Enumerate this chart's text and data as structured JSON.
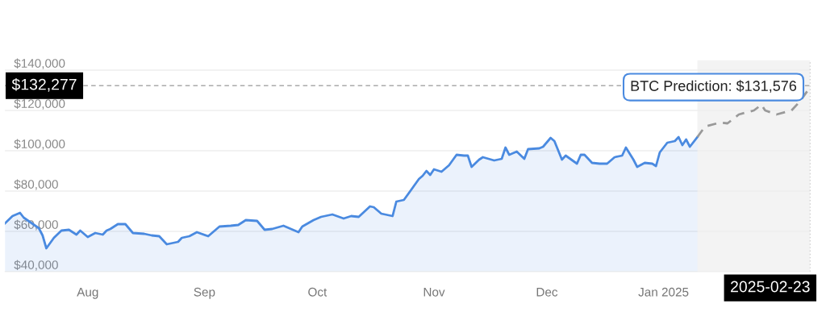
{
  "chart_data": {
    "type": "area",
    "series": [
      {
        "color": "#4a8ae0",
        "line_style": "solid",
        "x": [
          "2024-07-24",
          "2024-07-26",
          "2024-07-28",
          "2024-07-29",
          "2024-08-02",
          "2024-08-03",
          "2024-08-04",
          "2024-08-06",
          "2024-08-08",
          "2024-08-10",
          "2024-08-12",
          "2024-08-13",
          "2024-08-15",
          "2024-08-17",
          "2024-08-19",
          "2024-08-20",
          "2024-08-21",
          "2024-08-23",
          "2024-08-25",
          "2024-08-27",
          "2024-08-30",
          "2024-09-01",
          "2024-09-03",
          "2024-09-05",
          "2024-09-08",
          "2024-09-09",
          "2024-09-11",
          "2024-09-13",
          "2024-09-16",
          "2024-09-19",
          "2024-09-22",
          "2024-09-24",
          "2024-09-26",
          "2024-09-29",
          "2024-10-01",
          "2024-10-03",
          "2024-10-06",
          "2024-10-10",
          "2024-10-11",
          "2024-10-14",
          "2024-10-16",
          "2024-10-19",
          "2024-10-22",
          "2024-10-24",
          "2024-10-26",
          "2024-10-29",
          "2024-10-30",
          "2024-11-01",
          "2024-11-04",
          "2024-11-05",
          "2024-11-07",
          "2024-11-11",
          "2024-11-12",
          "2024-11-13",
          "2024-11-14",
          "2024-11-15",
          "2024-11-17",
          "2024-11-19",
          "2024-11-21",
          "2024-11-23",
          "2024-11-24",
          "2024-11-25",
          "2024-11-27",
          "2024-11-28",
          "2024-12-01",
          "2024-12-03",
          "2024-12-04",
          "2024-12-05",
          "2024-12-07",
          "2024-12-09",
          "2024-12-10",
          "2024-12-13",
          "2024-12-14",
          "2024-12-16",
          "2024-12-17",
          "2024-12-19",
          "2024-12-20",
          "2024-12-23",
          "2024-12-24",
          "2024-12-25",
          "2024-12-27",
          "2024-12-29",
          "2024-12-31",
          "2025-01-02",
          "2025-01-04",
          "2025-01-05",
          "2025-01-07",
          "2025-01-08",
          "2025-01-10",
          "2025-01-12",
          "2025-01-13",
          "2025-01-14",
          "2025-01-16",
          "2025-01-18",
          "2025-01-19",
          "2025-01-20",
          "2025-01-21",
          "2025-01-22",
          "2025-01-24"
        ],
        "values": [
          64000,
          67600,
          69200,
          66800,
          61600,
          58000,
          51600,
          56800,
          60400,
          60800,
          58400,
          60400,
          57200,
          59200,
          58400,
          60400,
          61200,
          63600,
          63600,
          59200,
          58800,
          58000,
          57600,
          53600,
          54800,
          56800,
          57600,
          59600,
          57600,
          62400,
          62800,
          63200,
          65600,
          65200,
          60800,
          61200,
          62800,
          59600,
          62400,
          65600,
          67200,
          68400,
          66400,
          67600,
          67200,
          72400,
          72000,
          68800,
          67600,
          74800,
          75600,
          86000,
          87600,
          90000,
          88000,
          90800,
          89600,
          92800,
          98000,
          97600,
          97600,
          92000,
          95600,
          96800,
          95200,
          96000,
          101600,
          98000,
          99600,
          96000,
          100800,
          101200,
          102000,
          106400,
          104800,
          95600,
          97600,
          93600,
          98000,
          98000,
          94000,
          93600,
          93600,
          96800,
          97600,
          101600,
          95600,
          92000,
          94000,
          93600,
          92400,
          99200,
          104000,
          104800,
          106800,
          102800,
          105600,
          102000,
          106800
        ]
      },
      {
        "type": "line",
        "color": "#999999",
        "line_style": "dashed",
        "x": [
          "2025-01-24",
          "2025-01-26",
          "2025-01-30",
          "2025-02-01",
          "2025-02-04",
          "2025-02-08",
          "2025-02-10",
          "2025-02-11",
          "2025-02-14",
          "2025-02-18",
          "2025-02-20",
          "2025-02-23"
        ],
        "values": [
          106800,
          112000,
          114000,
          113600,
          118000,
          120000,
          122800,
          120000,
          118000,
          120000,
          124000,
          131576
        ]
      }
    ],
    "xlim": [
      "2024-07-24",
      "2025-02-23"
    ],
    "xticks": [
      {
        "value": "2024-08-15",
        "label": "Aug"
      },
      {
        "value": "2024-09-15",
        "label": "Sep"
      },
      {
        "value": "2024-10-15",
        "label": "Oct"
      },
      {
        "value": "2024-11-15",
        "label": "Nov"
      },
      {
        "value": "2024-12-15",
        "label": "Dec"
      },
      {
        "value": "2025-01-15",
        "label": "Jan 2025"
      }
    ],
    "ylim": [
      40000,
      145000
    ],
    "yticks": [
      {
        "value": 40000,
        "label": "$40,000"
      },
      {
        "value": 60000,
        "label": "$60,000"
      },
      {
        "value": 80000,
        "label": "$80,000"
      },
      {
        "value": 100000,
        "label": "$100,000"
      },
      {
        "value": 120000,
        "label": "$120,000"
      },
      {
        "value": 140000,
        "label": "$140,000"
      }
    ],
    "grid": "y",
    "legend": false,
    "marker": "none",
    "ref_lines": [
      {
        "axis": "y",
        "value": 132277,
        "label": "$132,277",
        "color": "#aaaaaa",
        "line_style": "dashed"
      },
      {
        "axis": "x",
        "value": "2025-02-23",
        "label": "2025-02-23",
        "color": "#aaaaaa",
        "line_style": "dotted"
      }
    ],
    "bands": [
      {
        "axis": "x",
        "from": "2025-01-24",
        "to": "2025-02-23",
        "color": "#f3f3f3"
      }
    ],
    "annotations": [
      {
        "text": "BTC Prediction: $131,576",
        "x": "2025-02-23",
        "y": 131576
      }
    ]
  }
}
